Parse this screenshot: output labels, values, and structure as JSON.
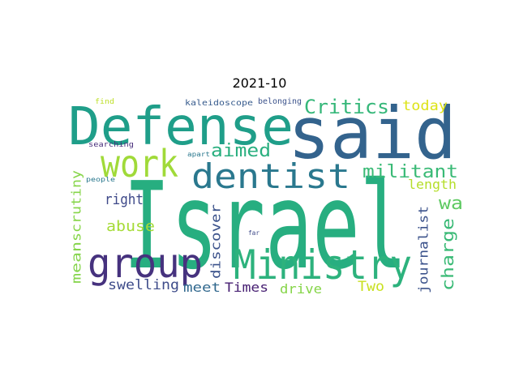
{
  "title": "2021-10",
  "words": [
    {
      "text": "Israel",
      "color": "#27ae80"
    },
    {
      "text": "said",
      "color": "#33638d"
    },
    {
      "text": "Defense",
      "color": "#1f9e89"
    },
    {
      "text": "Ministry",
      "color": "#2db27d"
    },
    {
      "text": "group",
      "color": "#46327e"
    },
    {
      "text": "dentist",
      "color": "#2a788e"
    },
    {
      "text": "work",
      "color": "#a0da39"
    },
    {
      "text": "Critics",
      "color": "#35b779"
    },
    {
      "text": "militant",
      "color": "#3aba76"
    },
    {
      "text": "aimed",
      "color": "#29af7f"
    },
    {
      "text": "today",
      "color": "#dde318"
    },
    {
      "text": "wa",
      "color": "#5ec962"
    },
    {
      "text": "right",
      "color": "#3e4989"
    },
    {
      "text": "length",
      "color": "#b5de2b"
    },
    {
      "text": "abuse",
      "color": "#a5db36"
    },
    {
      "text": "scrutiny",
      "color": "#86d549"
    },
    {
      "text": "mean",
      "color": "#84d44b"
    },
    {
      "text": "discover",
      "color": "#3b528b"
    },
    {
      "text": "swelling",
      "color": "#3e4c8a"
    },
    {
      "text": "meet",
      "color": "#31688e"
    },
    {
      "text": "Times",
      "color": "#482173"
    },
    {
      "text": "drive",
      "color": "#86d549"
    },
    {
      "text": "Two",
      "color": "#c8e020"
    },
    {
      "text": "journalist",
      "color": "#3b528b"
    },
    {
      "text": "charge",
      "color": "#3aba76"
    },
    {
      "text": "find",
      "color": "#bddf26"
    },
    {
      "text": "kaleidoscope",
      "color": "#375b8d"
    },
    {
      "text": "belonging",
      "color": "#3b528b"
    },
    {
      "text": "searching",
      "color": "#472d7b"
    },
    {
      "text": "apart",
      "color": "#2a788e"
    },
    {
      "text": "people",
      "color": "#2a788e"
    },
    {
      "text": "far",
      "color": "#3e4989"
    }
  ]
}
